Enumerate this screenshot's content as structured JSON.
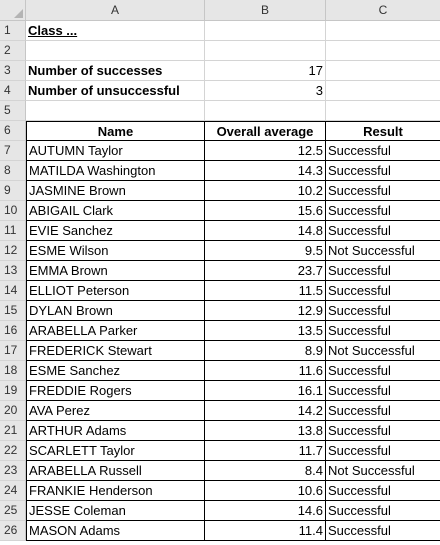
{
  "columns": [
    "A",
    "B",
    "C"
  ],
  "title": "Class ...",
  "summary": [
    {
      "label": "Number of successes",
      "value": "17"
    },
    {
      "label": "Number of unsuccessful",
      "value": "3"
    }
  ],
  "table": {
    "headers": [
      "Name",
      "Overall average",
      "Result"
    ],
    "rows": [
      [
        "AUTUMN Taylor",
        "12.5",
        "Successful"
      ],
      [
        "MATILDA Washington",
        "14.3",
        "Successful"
      ],
      [
        "JASMINE Brown",
        "10.2",
        "Successful"
      ],
      [
        "ABIGAIL Clark",
        "15.6",
        "Successful"
      ],
      [
        "EVIE Sanchez",
        "14.8",
        "Successful"
      ],
      [
        "ESME Wilson",
        "9.5",
        "Not Successful"
      ],
      [
        "EMMA Brown",
        "23.7",
        "Successful"
      ],
      [
        "ELLIOT Peterson",
        "11.5",
        "Successful"
      ],
      [
        "DYLAN Brown",
        "12.9",
        "Successful"
      ],
      [
        "ARABELLA Parker",
        "13.5",
        "Successful"
      ],
      [
        "FREDERICK Stewart",
        "8.9",
        "Not Successful"
      ],
      [
        "ESME Sanchez",
        "11.6",
        "Successful"
      ],
      [
        "FREDDIE Rogers",
        "16.1",
        "Successful"
      ],
      [
        "AVA Perez",
        "14.2",
        "Successful"
      ],
      [
        "ARTHUR Adams",
        "13.8",
        "Successful"
      ],
      [
        "SCARLETT Taylor",
        "11.7",
        "Successful"
      ],
      [
        "ARABELLA Russell",
        "8.4",
        "Not Successful"
      ],
      [
        "FRANKIE Henderson",
        "10.6",
        "Successful"
      ],
      [
        "JESSE Coleman",
        "14.6",
        "Successful"
      ],
      [
        "MASON Adams",
        "11.4",
        "Successful"
      ]
    ]
  }
}
